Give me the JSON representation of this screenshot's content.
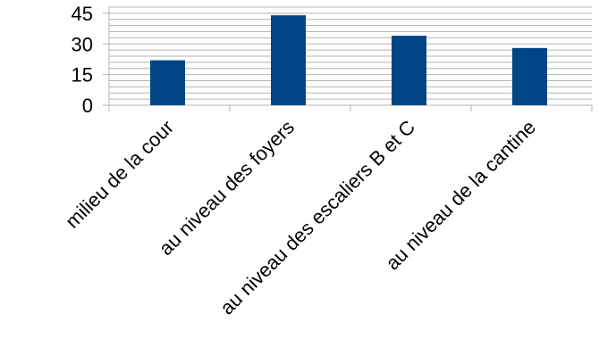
{
  "chart_data": {
    "type": "bar",
    "categories": [
      "milieu de la cour",
      "au niveau des foyers",
      "au niveau des escaliers B et C",
      "au niveau de la cantine"
    ],
    "values": [
      22,
      44,
      34,
      28
    ],
    "title": "",
    "xlabel": "",
    "ylabel": "",
    "ylim": [
      0,
      48
    ],
    "yticks": [
      "0",
      "15",
      "30",
      "45"
    ],
    "grid": true,
    "legend": "none",
    "bar_color": "#004586",
    "grid_color": "#b3b3b3"
  }
}
